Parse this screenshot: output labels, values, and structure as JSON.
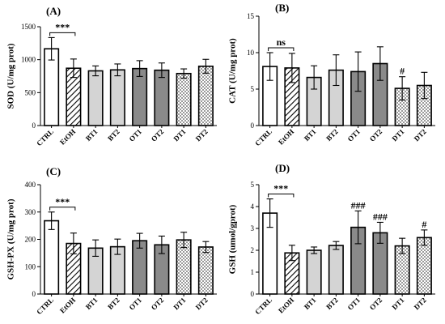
{
  "figure": {
    "groups": [
      "CTRL",
      "EtOH",
      "BT1",
      "BT2",
      "OT1",
      "OT2",
      "DT1",
      "DT2"
    ]
  },
  "chart_data": [
    {
      "type": "bar",
      "title": "(A)",
      "xlabel": "",
      "ylabel": "SOD (U/mg prot)",
      "categories": [
        "CTRL",
        "EtOH",
        "BT1",
        "BT2",
        "OT1",
        "OT2",
        "DT1",
        "DT2"
      ],
      "values": [
        1165,
        870,
        830,
        845,
        865,
        840,
        790,
        900
      ],
      "errors": [
        170,
        140,
        75,
        90,
        120,
        110,
        70,
        105
      ],
      "ylim": [
        0,
        1500
      ],
      "yticks": [
        0,
        500,
        1000,
        1500
      ],
      "annotations": [
        {
          "label": "***",
          "type": "bracket",
          "from": 0,
          "to": 1
        }
      ]
    },
    {
      "type": "bar",
      "title": "(B)",
      "xlabel": "",
      "ylabel": "CAT (U/mg prot)",
      "categories": [
        "CTRL",
        "EtOH",
        "BT1",
        "BT2",
        "OT1",
        "OT2",
        "DT1",
        "DT2"
      ],
      "values": [
        8.1,
        7.9,
        6.6,
        7.6,
        7.4,
        8.5,
        5.1,
        5.5
      ],
      "errors": [
        1.9,
        2.0,
        1.6,
        2.1,
        2.7,
        2.3,
        1.6,
        1.8
      ],
      "ylim": [
        0,
        15
      ],
      "yticks": [
        0,
        5,
        10,
        15
      ],
      "annotations": [
        {
          "label": "ns",
          "type": "bracket",
          "from": 0,
          "to": 1
        },
        {
          "label": "#",
          "type": "mark",
          "at": 6
        }
      ]
    },
    {
      "type": "bar",
      "title": "(C)",
      "xlabel": "",
      "ylabel": "GSH-PX (U/mg prot)",
      "categories": [
        "CTRL",
        "EtOH",
        "BT1",
        "BT2",
        "OT1",
        "OT2",
        "DT1",
        "DT2"
      ],
      "values": [
        268,
        185,
        168,
        173,
        195,
        180,
        198,
        172
      ],
      "errors": [
        32,
        38,
        30,
        28,
        27,
        32,
        28,
        20
      ],
      "ylim": [
        0,
        400
      ],
      "yticks": [
        0,
        100,
        200,
        300,
        400
      ],
      "annotations": [
        {
          "label": "***",
          "type": "bracket",
          "from": 0,
          "to": 1
        }
      ]
    },
    {
      "type": "bar",
      "title": "(D)",
      "xlabel": "",
      "ylabel": "GSH (umol/gprot)",
      "categories": [
        "CTRL",
        "EtOH",
        "BT1",
        "BT2",
        "OT1",
        "OT2",
        "DT1",
        "DT2"
      ],
      "values": [
        3.7,
        1.88,
        2.0,
        2.22,
        3.05,
        2.8,
        2.2,
        2.58
      ],
      "errors": [
        0.65,
        0.35,
        0.15,
        0.18,
        0.75,
        0.48,
        0.35,
        0.35
      ],
      "ylim": [
        0,
        5
      ],
      "yticks": [
        0,
        1,
        2,
        3,
        4,
        5
      ],
      "annotations": [
        {
          "label": "***",
          "type": "bracket",
          "from": 0,
          "to": 1
        },
        {
          "label": "###",
          "type": "mark",
          "at": 4
        },
        {
          "label": "###",
          "type": "mark",
          "at": 5
        },
        {
          "label": "#",
          "type": "mark",
          "at": 7
        }
      ]
    }
  ]
}
